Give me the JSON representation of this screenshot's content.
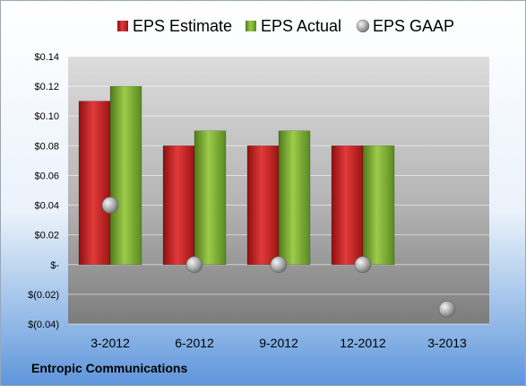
{
  "company": "Entropic Communications",
  "chart_data": {
    "type": "bar",
    "categories": [
      "3-2012",
      "6-2012",
      "9-2012",
      "12-2012",
      "3-2013"
    ],
    "series": [
      {
        "name": "EPS Estimate",
        "kind": "bar",
        "color": "#cc1f1f",
        "values": [
          0.11,
          0.08,
          0.08,
          0.08,
          null
        ]
      },
      {
        "name": "EPS Actual",
        "kind": "bar",
        "color": "#7aaa2e",
        "values": [
          0.12,
          0.09,
          0.09,
          0.08,
          null
        ]
      },
      {
        "name": "EPS GAAP",
        "kind": "marker",
        "color": "#a0a0a0",
        "values": [
          0.04,
          0.0,
          0.0,
          0.0,
          -0.03
        ]
      }
    ],
    "ylim": [
      -0.04,
      0.14
    ],
    "yticks": [
      0.14,
      0.12,
      0.1,
      0.08,
      0.06,
      0.04,
      0.02,
      0.0,
      -0.02,
      -0.04
    ],
    "ytick_labels": [
      "$0.14",
      "$0.12",
      "$0.10",
      "$0.08",
      "$0.06",
      "$0.04",
      "$0.02",
      "$-",
      "$(0.02)",
      "$(0.04)"
    ],
    "legend_position": "top",
    "grid": true
  }
}
